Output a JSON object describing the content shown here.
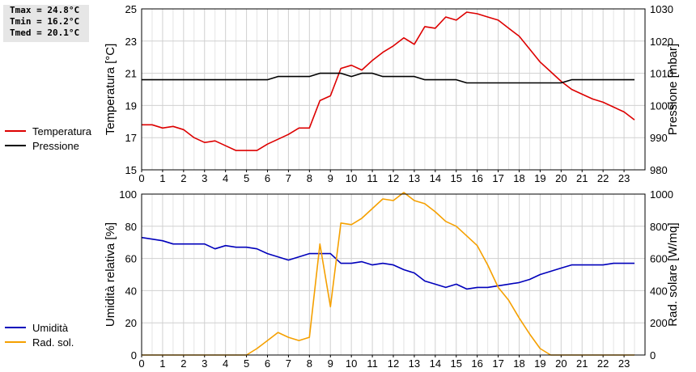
{
  "stats": {
    "tmax": "Tmax = 24.8°C",
    "tmin": "Tmin = 16.2°C",
    "tmed": "Tmed = 20.1°C"
  },
  "colors": {
    "temperature": "#dd0000",
    "pressure": "#000000",
    "humidity": "#0000bb",
    "radiation": "#f5a000",
    "grid": "#d0d0d0"
  },
  "chart_data": [
    {
      "type": "line",
      "x_ticks": [
        0,
        1,
        2,
        3,
        4,
        5,
        6,
        7,
        8,
        9,
        10,
        11,
        12,
        13,
        14,
        15,
        16,
        17,
        18,
        19,
        20,
        21,
        22,
        23
      ],
      "left_axis": {
        "label": "Temperatura [°C]",
        "lim": [
          15,
          25
        ],
        "ticks": [
          15,
          17,
          19,
          21,
          23,
          25
        ]
      },
      "right_axis": {
        "label": "Pressione [mbar]",
        "lim": [
          980,
          1030
        ],
        "ticks": [
          980,
          990,
          1000,
          1010,
          1020,
          1030
        ]
      },
      "grid": true,
      "legend_position": "left",
      "series": [
        {
          "name": "Temperatura",
          "axis": "left",
          "color_key": "temperature",
          "x": [
            0,
            0.5,
            1,
            1.5,
            2,
            2.5,
            3,
            3.5,
            4,
            4.5,
            5,
            5.5,
            6,
            6.5,
            7,
            7.5,
            8,
            8.5,
            9,
            9.5,
            10,
            10.5,
            11,
            11.5,
            12,
            12.5,
            13,
            13.5,
            14,
            14.5,
            15,
            15.5,
            16,
            16.5,
            17,
            17.5,
            18,
            18.5,
            19,
            19.5,
            20,
            20.5,
            21,
            21.5,
            22,
            22.5,
            23,
            23.5
          ],
          "y": [
            17.8,
            17.8,
            17.6,
            17.7,
            17.5,
            17.0,
            16.7,
            16.8,
            16.5,
            16.2,
            16.2,
            16.2,
            16.6,
            16.9,
            17.2,
            17.6,
            17.6,
            19.3,
            19.6,
            21.3,
            21.5,
            21.2,
            21.8,
            22.3,
            22.7,
            23.2,
            22.8,
            23.9,
            23.8,
            24.5,
            24.3,
            24.8,
            24.7,
            24.5,
            24.3,
            23.8,
            23.3,
            22.5,
            21.7,
            21.1,
            20.5,
            20.0,
            19.7,
            19.4,
            19.2,
            18.9,
            18.6,
            18.1
          ]
        },
        {
          "name": "Pressione",
          "axis": "right",
          "color_key": "pressure",
          "x": [
            0,
            6,
            6.5,
            8,
            8.5,
            9.5,
            10,
            10.5,
            11,
            11.5,
            13,
            13.5,
            14,
            15,
            15.5,
            20,
            20.5,
            23.5
          ],
          "y": [
            1008,
            1008,
            1009,
            1009,
            1010,
            1010,
            1009,
            1010,
            1010,
            1009,
            1009,
            1008,
            1008,
            1008,
            1007,
            1007,
            1008,
            1008
          ]
        }
      ]
    },
    {
      "type": "line",
      "x_ticks": [
        0,
        1,
        2,
        3,
        4,
        5,
        6,
        7,
        8,
        9,
        10,
        11,
        12,
        13,
        14,
        15,
        16,
        17,
        18,
        19,
        20,
        21,
        22,
        23
      ],
      "left_axis": {
        "label": "Umidità relativa [%]",
        "lim": [
          0,
          100
        ],
        "ticks": [
          0,
          20,
          40,
          60,
          80,
          100
        ]
      },
      "right_axis": {
        "label": "Rad. solare [W/mq]",
        "lim": [
          0,
          1000
        ],
        "ticks": [
          0,
          200,
          400,
          600,
          800,
          1000
        ]
      },
      "grid": true,
      "legend_position": "left",
      "series": [
        {
          "name": "Umidità",
          "axis": "left",
          "color_key": "humidity",
          "x": [
            0,
            0.5,
            1,
            1.5,
            2,
            3,
            3.5,
            4,
            4.5,
            5,
            5.5,
            6,
            6.5,
            7,
            7.5,
            8,
            8.5,
            9,
            9.5,
            10,
            10.5,
            11,
            11.5,
            12,
            12.5,
            13,
            13.5,
            14,
            14.5,
            15,
            15.5,
            16,
            16.5,
            17,
            17.5,
            18,
            18.5,
            19,
            19.5,
            20,
            20.5,
            21,
            21.5,
            22,
            22.5,
            23,
            23.5
          ],
          "y": [
            73,
            72,
            71,
            69,
            69,
            69,
            66,
            68,
            67,
            67,
            66,
            63,
            61,
            59,
            61,
            63,
            63,
            63,
            57,
            57,
            58,
            56,
            57,
            56,
            53,
            51,
            46,
            44,
            42,
            44,
            41,
            42,
            42,
            43,
            44,
            45,
            47,
            50,
            52,
            54,
            56,
            56,
            56,
            56,
            57,
            57,
            57
          ]
        },
        {
          "name": "Rad. sol.",
          "axis": "right",
          "color_key": "radiation",
          "x": [
            0,
            1,
            2,
            3,
            4,
            5,
            5.5,
            6,
            6.5,
            7,
            7.5,
            8,
            8.5,
            9,
            9.5,
            10,
            10.5,
            11,
            11.5,
            12,
            12.5,
            13,
            13.5,
            14,
            14.5,
            15,
            15.5,
            16,
            16.5,
            17,
            17.5,
            18,
            18.5,
            19,
            19.5,
            20,
            21,
            22,
            23,
            23.5
          ],
          "y": [
            0,
            0,
            0,
            0,
            0,
            0,
            40,
            90,
            140,
            110,
            90,
            110,
            690,
            300,
            820,
            810,
            850,
            910,
            970,
            960,
            1010,
            960,
            940,
            890,
            830,
            800,
            740,
            680,
            560,
            420,
            340,
            230,
            130,
            40,
            0,
            0,
            0,
            0,
            0,
            0
          ]
        }
      ]
    }
  ]
}
